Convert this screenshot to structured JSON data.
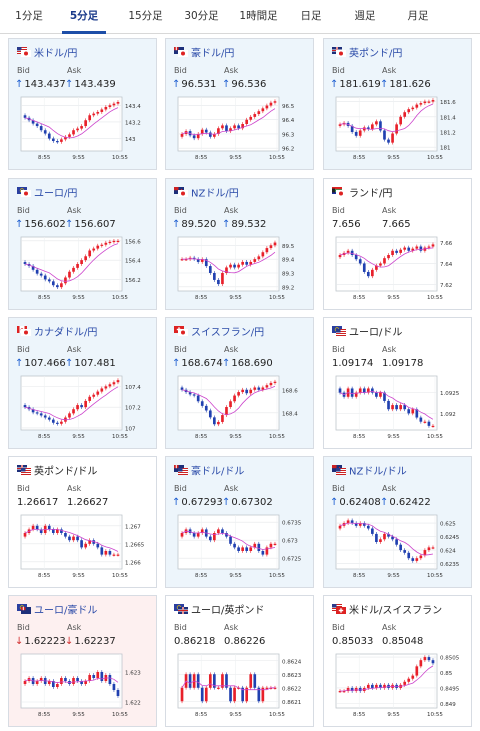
{
  "tabs": [
    "1分足",
    "5分足",
    "15分足",
    "30分足",
    "1時間足",
    "日足",
    "週足",
    "月足"
  ],
  "active_tab": 1,
  "labels": {
    "bid": "Bid",
    "ask": "Ask"
  },
  "colors": {
    "accent": "#1d4ea8",
    "up_arrow": "#1a5bd0",
    "down_arrow": "#d23030",
    "candle_up": "#e8202a",
    "candle_down": "#2040b0",
    "ma": "#cc44cc",
    "card_up_bg": "#edf5fb",
    "card_down_bg": "#fdf0f0"
  },
  "times": [
    "8:55",
    "9:55",
    "10:55"
  ],
  "pairs": [
    {
      "name": "米ドル/円",
      "flags": [
        "us",
        "jp"
      ],
      "dir": "up",
      "bid": "143.437",
      "ask": "143.439",
      "yticks": [
        "143.4",
        "143.2",
        "143"
      ],
      "ylim": [
        142.85,
        143.5
      ],
      "closes": [
        143.25,
        143.22,
        143.18,
        143.15,
        143.1,
        143.06,
        143.0,
        142.97,
        142.96,
        142.99,
        143.02,
        143.05,
        143.1,
        143.12,
        143.15,
        143.22,
        143.28,
        143.3,
        143.32,
        143.35,
        143.38,
        143.4,
        143.42,
        143.44
      ]
    },
    {
      "name": "豪ドル/円",
      "flags": [
        "au",
        "jp"
      ],
      "dir": "up",
      "bid": "96.531",
      "ask": "96.536",
      "yticks": [
        "96.5",
        "96.4",
        "96.3",
        "96.2"
      ],
      "ylim": [
        96.18,
        96.56
      ],
      "closes": [
        96.3,
        96.32,
        96.29,
        96.27,
        96.3,
        96.33,
        96.31,
        96.28,
        96.3,
        96.34,
        96.36,
        96.32,
        96.34,
        96.36,
        96.34,
        96.37,
        96.4,
        96.42,
        96.44,
        96.46,
        96.48,
        96.5,
        96.52,
        96.53
      ]
    },
    {
      "name": "英ポンド/円",
      "flags": [
        "gb",
        "jp"
      ],
      "dir": "up",
      "bid": "181.619",
      "ask": "181.626",
      "yticks": [
        "181.6",
        "181.4",
        "181.2",
        "181"
      ],
      "ylim": [
        180.95,
        181.66
      ],
      "closes": [
        181.3,
        181.32,
        181.28,
        181.2,
        181.15,
        181.22,
        181.26,
        181.24,
        181.3,
        181.34,
        181.22,
        181.1,
        181.06,
        181.18,
        181.3,
        181.4,
        181.46,
        181.5,
        181.52,
        181.56,
        181.58,
        181.6,
        181.6,
        181.62
      ]
    },
    {
      "name": "ユーロ/円",
      "flags": [
        "eu",
        "jp"
      ],
      "dir": "up",
      "bid": "156.602",
      "ask": "156.607",
      "yticks": [
        "156.6",
        "156.4",
        "156.2"
      ],
      "ylim": [
        156.08,
        156.64
      ],
      "closes": [
        156.36,
        156.34,
        156.3,
        156.26,
        156.24,
        156.2,
        156.18,
        156.14,
        156.12,
        156.16,
        156.22,
        156.28,
        156.32,
        156.36,
        156.4,
        156.44,
        156.5,
        156.52,
        156.55,
        156.56,
        156.58,
        156.59,
        156.6,
        156.6
      ]
    },
    {
      "name": "NZドル/円",
      "flags": [
        "nz",
        "jp"
      ],
      "dir": "up",
      "bid": "89.520",
      "ask": "89.532",
      "yticks": [
        "89.5",
        "89.4",
        "89.3",
        "89.2"
      ],
      "ylim": [
        89.17,
        89.56
      ],
      "closes": [
        89.4,
        89.4,
        89.41,
        89.4,
        89.38,
        89.4,
        89.35,
        89.3,
        89.25,
        89.22,
        89.3,
        89.34,
        89.36,
        89.34,
        89.36,
        89.38,
        89.36,
        89.38,
        89.4,
        89.42,
        89.45,
        89.48,
        89.5,
        89.52
      ]
    },
    {
      "name": "ランド/円",
      "flags": [
        "za",
        "jp"
      ],
      "dir": "none",
      "bid": "7.656",
      "ask": "7.665",
      "yticks": [
        "7.66",
        "7.64",
        "7.62"
      ],
      "ylim": [
        7.614,
        7.665
      ],
      "closes": [
        7.648,
        7.65,
        7.652,
        7.648,
        7.644,
        7.64,
        7.632,
        7.628,
        7.634,
        7.638,
        7.64,
        7.645,
        7.648,
        7.652,
        7.65,
        7.653,
        7.655,
        7.652,
        7.654,
        7.656,
        7.652,
        7.655,
        7.656,
        7.658
      ]
    },
    {
      "name": "カナダドル/円",
      "flags": [
        "ca",
        "jp"
      ],
      "dir": "up",
      "bid": "107.466",
      "ask": "107.481",
      "yticks": [
        "107.4",
        "107.2",
        "107"
      ],
      "ylim": [
        106.98,
        107.5
      ],
      "closes": [
        107.2,
        107.18,
        107.15,
        107.14,
        107.12,
        107.1,
        107.08,
        107.05,
        107.04,
        107.06,
        107.1,
        107.14,
        107.18,
        107.22,
        107.2,
        107.26,
        107.3,
        107.32,
        107.35,
        107.38,
        107.4,
        107.42,
        107.44,
        107.46
      ]
    },
    {
      "name": "スイスフラン/円",
      "flags": [
        "ch",
        "jp"
      ],
      "dir": "up",
      "bid": "168.674",
      "ask": "168.690",
      "yticks": [
        "168.6",
        "168.4"
      ],
      "ylim": [
        168.25,
        168.72
      ],
      "closes": [
        168.6,
        168.58,
        168.56,
        168.55,
        168.5,
        168.46,
        168.42,
        168.36,
        168.3,
        168.32,
        168.38,
        168.45,
        168.5,
        168.55,
        168.58,
        168.6,
        168.57,
        168.6,
        168.62,
        168.6,
        168.62,
        168.64,
        168.66,
        168.67
      ]
    },
    {
      "name": "ユーロ/ドル",
      "flags": [
        "eu",
        "us"
      ],
      "dir": "none",
      "bid": "1.09174",
      "ask": "1.09178",
      "yticks": [
        "1.0925",
        "1.092"
      ],
      "ylim": [
        1.0916,
        1.0929
      ],
      "closes": [
        1.0925,
        1.0924,
        1.0926,
        1.0924,
        1.0925,
        1.0926,
        1.0925,
        1.0926,
        1.0925,
        1.0924,
        1.0925,
        1.0923,
        1.0921,
        1.0922,
        1.0921,
        1.0922,
        1.0921,
        1.092,
        1.0921,
        1.0919,
        1.0918,
        1.0918,
        1.0917,
        1.0917
      ]
    },
    {
      "name": "英ポンド/ドル",
      "flags": [
        "gb",
        "us"
      ],
      "dir": "none",
      "bid": "1.26617",
      "ask": "1.26627",
      "yticks": [
        "1.267",
        "1.2665",
        "1.266"
      ],
      "ylim": [
        1.2658,
        1.2673
      ],
      "closes": [
        1.2668,
        1.2669,
        1.267,
        1.2669,
        1.2668,
        1.267,
        1.2669,
        1.2668,
        1.2669,
        1.2668,
        1.2667,
        1.2666,
        1.2667,
        1.2666,
        1.2664,
        1.2665,
        1.2666,
        1.2665,
        1.2664,
        1.2662,
        1.2663,
        1.2662,
        1.2662,
        1.2662
      ]
    },
    {
      "name": "豪ドル/ドル",
      "flags": [
        "au",
        "us"
      ],
      "dir": "up",
      "bid": "0.67293",
      "ask": "0.67302",
      "yticks": [
        "0.6735",
        "0.673",
        "0.6725"
      ],
      "ylim": [
        0.6722,
        0.6737
      ],
      "closes": [
        0.6732,
        0.6733,
        0.6732,
        0.6731,
        0.6732,
        0.6733,
        0.6731,
        0.673,
        0.6732,
        0.6733,
        0.6732,
        0.6731,
        0.6729,
        0.6728,
        0.6727,
        0.6728,
        0.6727,
        0.6728,
        0.6729,
        0.6727,
        0.6726,
        0.6728,
        0.6729,
        0.6729
      ]
    },
    {
      "name": "NZドル/ドル",
      "flags": [
        "nz",
        "us"
      ],
      "dir": "up",
      "bid": "0.62408",
      "ask": "0.62422",
      "yticks": [
        "0.625",
        "0.6245",
        "0.624",
        "0.6235"
      ],
      "ylim": [
        0.6233,
        0.6253
      ],
      "closes": [
        0.6249,
        0.625,
        0.6251,
        0.625,
        0.6249,
        0.625,
        0.6249,
        0.6248,
        0.6246,
        0.6243,
        0.6244,
        0.6246,
        0.6245,
        0.6244,
        0.6242,
        0.624,
        0.6239,
        0.6237,
        0.6236,
        0.6237,
        0.6238,
        0.624,
        0.6241,
        0.6241
      ]
    },
    {
      "name": "ユーロ/豪ドル",
      "flags": [
        "eu",
        "au"
      ],
      "dir": "down",
      "bid": "1.62223",
      "ask": "1.62237",
      "yticks": [
        "1.623",
        "1.622"
      ],
      "ylim": [
        1.6218,
        1.6236
      ],
      "closes": [
        1.6227,
        1.6228,
        1.6226,
        1.6227,
        1.6228,
        1.6226,
        1.6227,
        1.6225,
        1.6226,
        1.6228,
        1.6227,
        1.6226,
        1.6228,
        1.6227,
        1.6226,
        1.6227,
        1.6229,
        1.6228,
        1.623,
        1.6227,
        1.6229,
        1.6226,
        1.6224,
        1.6222
      ]
    },
    {
      "name": "ユーロ/英ポンド",
      "flags": [
        "eu",
        "gb"
      ],
      "dir": "none",
      "bid": "0.86218",
      "ask": "0.86226",
      "yticks": [
        "0.8624",
        "0.8623",
        "0.8622",
        "0.8621"
      ],
      "ylim": [
        0.86205,
        0.86245
      ],
      "closes": [
        0.8622,
        0.8623,
        0.8622,
        0.8623,
        0.8622,
        0.8621,
        0.8622,
        0.8623,
        0.8622,
        0.8622,
        0.8623,
        0.8622,
        0.8621,
        0.8622,
        0.8622,
        0.8621,
        0.8622,
        0.8623,
        0.8622,
        0.8621,
        0.8622,
        0.8622,
        0.8622,
        0.8622
      ]
    },
    {
      "name": "米ドル/スイスフラン",
      "flags": [
        "us",
        "ch"
      ],
      "dir": "none",
      "bid": "0.85033",
      "ask": "0.85048",
      "yticks": [
        "0.8505",
        "0.85",
        "0.8495",
        "0.849"
      ],
      "ylim": [
        0.84885,
        0.8506
      ],
      "closes": [
        0.8494,
        0.8494,
        0.8495,
        0.8494,
        0.8495,
        0.8494,
        0.8495,
        0.8496,
        0.8495,
        0.8496,
        0.8495,
        0.8496,
        0.8495,
        0.8496,
        0.8495,
        0.8496,
        0.8497,
        0.8498,
        0.8499,
        0.8502,
        0.8504,
        0.8505,
        0.8504,
        0.8503
      ]
    }
  ]
}
